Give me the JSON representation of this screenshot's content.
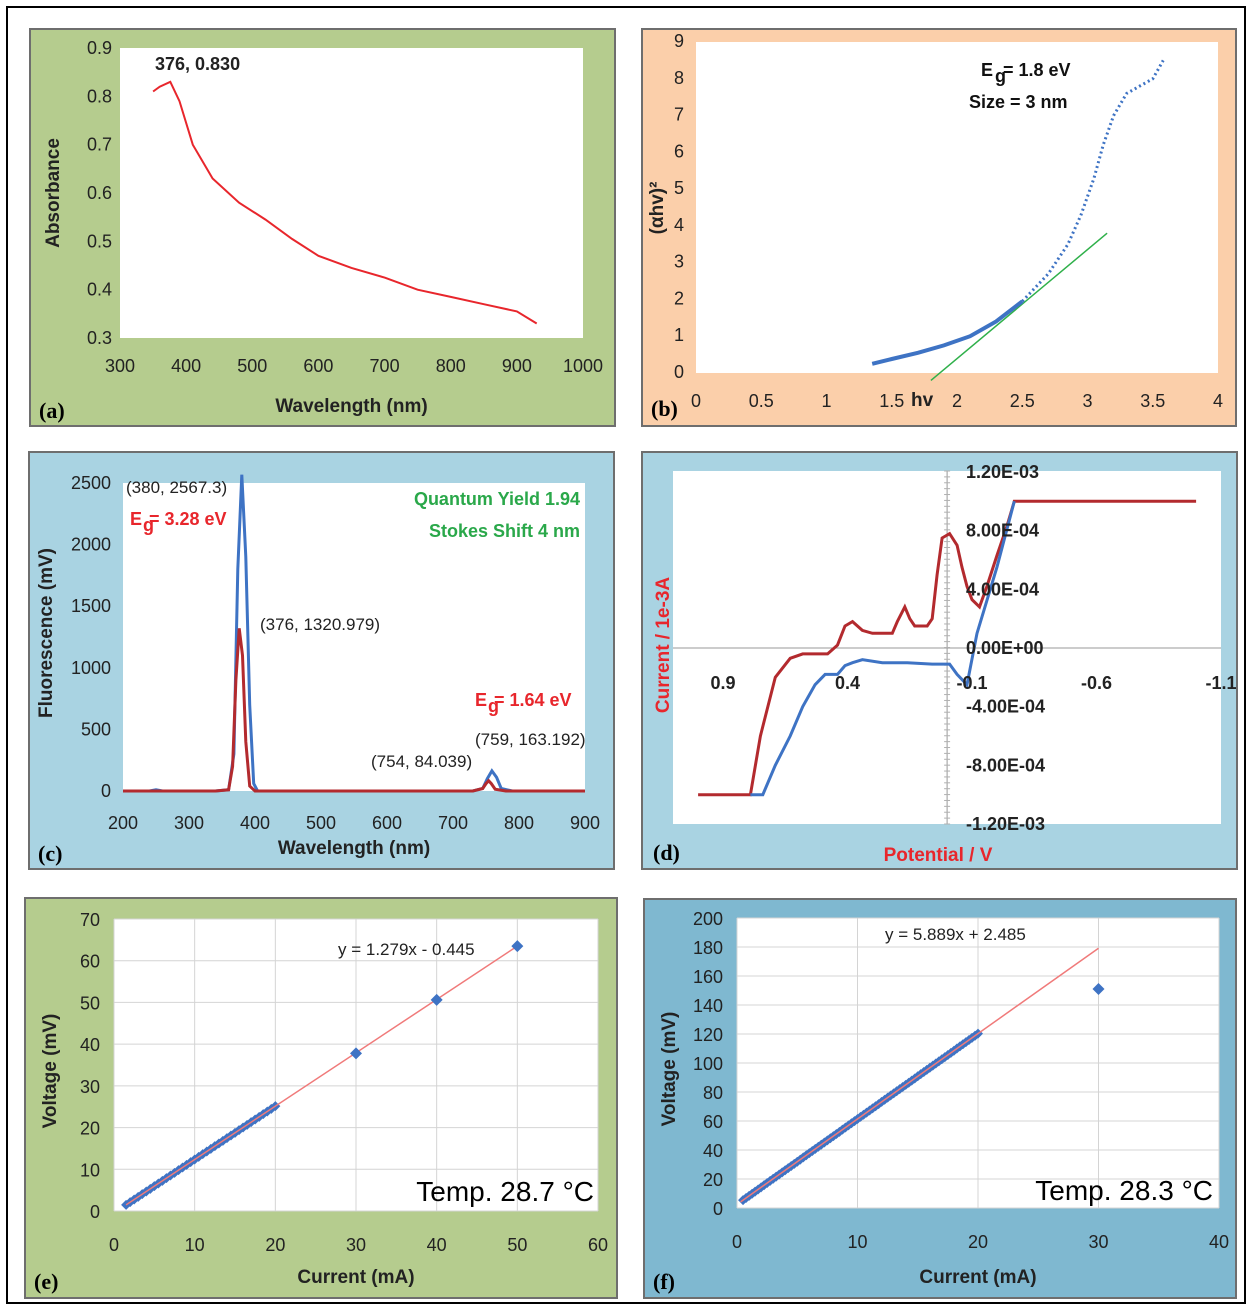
{
  "colors": {
    "green_bg": "#b5cc8e",
    "peach_bg": "#fbcfaa",
    "blue_bg": "#a9d3e2",
    "blue_bg_dark": "#7fb8d0",
    "red": "#e8262c",
    "dark_red": "#b32a2e",
    "blue": "#3e73c4",
    "green_line": "#2fb04a",
    "green_text": "#2aa84a",
    "pink_line": "#f07a7a"
  },
  "chart_data": [
    {
      "panel": "(a)",
      "type": "line",
      "xlabel": "Wavelength (nm)",
      "ylabel": "Absorbance",
      "xlim": [
        300,
        1000
      ],
      "ylim": [
        0.3,
        0.9
      ],
      "xticks": [
        "300",
        "400",
        "500",
        "600",
        "700",
        "800",
        "900",
        "1000"
      ],
      "yticks": [
        "0.3",
        "0.4",
        "0.5",
        "0.6",
        "0.7",
        "0.8",
        "0.9"
      ],
      "grid": false,
      "annotations": [
        "376, 0.830"
      ],
      "series": [
        {
          "x": [
            350,
            360,
            376,
            390,
            410,
            440,
            480,
            520,
            560,
            600,
            650,
            700,
            750,
            800,
            850,
            900,
            930
          ],
          "y": [
            0.81,
            0.82,
            0.83,
            0.79,
            0.7,
            0.63,
            0.58,
            0.545,
            0.505,
            0.47,
            0.445,
            0.425,
            0.4,
            0.385,
            0.37,
            0.355,
            0.33
          ]
        }
      ]
    },
    {
      "panel": "(b)",
      "type": "line",
      "xlabel": "hv",
      "ylabel": "(αhv)²",
      "xlim": [
        0,
        4
      ],
      "ylim": [
        0,
        9
      ],
      "xticks": [
        "0",
        "0.5",
        "1",
        "1.5",
        "2",
        "2.5",
        "3",
        "3.5",
        "4"
      ],
      "yticks": [
        "0",
        "1",
        "2",
        "3",
        "4",
        "5",
        "6",
        "7",
        "8",
        "9"
      ],
      "grid": false,
      "annotations": [
        "E",
        "g",
        " = 1.8 eV",
        "Size = 3 nm"
      ],
      "series": [
        {
          "style": "dotted",
          "x": [
            1.35,
            1.5,
            1.7,
            1.9,
            2.1,
            2.3,
            2.5,
            2.7,
            2.85,
            2.95,
            3.05,
            3.12,
            3.2,
            3.3,
            3.4,
            3.5,
            3.58
          ],
          "y": [
            0.25,
            0.38,
            0.55,
            0.75,
            1.0,
            1.4,
            1.95,
            2.7,
            3.5,
            4.3,
            5.3,
            6.2,
            7.0,
            7.6,
            7.8,
            8.0,
            8.5
          ]
        },
        {
          "style": "tangent",
          "x": [
            1.8,
            3.15
          ],
          "y": [
            -0.2,
            3.8
          ]
        }
      ]
    },
    {
      "panel": "(c)",
      "type": "line",
      "xlabel": "Wavelength (nm)",
      "ylabel": "Fluorescence (mV)",
      "xlim": [
        200,
        900
      ],
      "ylim": [
        0,
        2500
      ],
      "xticks": [
        "200",
        "300",
        "400",
        "500",
        "600",
        "700",
        "800",
        "900"
      ],
      "yticks": [
        "0",
        "500",
        "1000",
        "1500",
        "2000",
        "2500"
      ],
      "grid": false,
      "annotations": [
        "(380, 2567.3)",
        "E",
        "g",
        " = 3.28 eV",
        "(376, 1320.979)",
        "Quantum Yield  1.94",
        "Stokes Shift 4 nm",
        "E",
        "g",
        " = 1.64 eV",
        "(759, 163.192)",
        "(754, 84.039)"
      ],
      "series": [
        {
          "color": "blue",
          "x": [
            200,
            240,
            250,
            260,
            340,
            360,
            368,
            374,
            380,
            386,
            392,
            398,
            404,
            420,
            600,
            730,
            745,
            752,
            759,
            766,
            773,
            790,
            900
          ],
          "y": [
            0,
            0,
            10,
            0,
            0,
            10,
            300,
            1800,
            2567,
            1900,
            700,
            60,
            0,
            0,
            0,
            0,
            20,
            100,
            163,
            110,
            20,
            0,
            0
          ]
        },
        {
          "color": "red",
          "x": [
            200,
            340,
            360,
            366,
            371,
            376,
            381,
            386,
            392,
            400,
            600,
            730,
            745,
            750,
            754,
            758,
            764,
            780,
            900
          ],
          "y": [
            0,
            0,
            10,
            200,
            900,
            1321,
            1100,
            400,
            40,
            0,
            0,
            0,
            20,
            60,
            84,
            60,
            15,
            0,
            0
          ]
        }
      ]
    },
    {
      "panel": "(d)",
      "type": "line",
      "xlabel": "Potential / V",
      "ylabel": "Current / 1e-3A",
      "xlim": [
        1.0,
        -1.1
      ],
      "ylim": [
        -0.0012,
        0.0012
      ],
      "xticks": [
        "0.9",
        "0.4",
        "-0.1",
        "-0.6",
        "-1.1"
      ],
      "yticks": [
        "1.20E-03",
        "8.00E-04",
        "4.00E-04",
        "0.00E+00",
        "-4.00E-04",
        "-8.00E-04",
        "-1.20E-03"
      ],
      "grid": false,
      "series": [
        {
          "color": "dark_red",
          "x": [
            1.0,
            0.79,
            0.75,
            0.69,
            0.63,
            0.58,
            0.52,
            0.48,
            0.44,
            0.41,
            0.38,
            0.34,
            0.3,
            0.26,
            0.22,
            0.2,
            0.17,
            0.15,
            0.13,
            0.08,
            0.06,
            0.04,
            0.02,
            -0.01,
            -0.04,
            -0.06,
            -0.08,
            -0.1,
            -0.13,
            -0.16,
            -0.2,
            -0.24,
            -0.27,
            -0.36,
            -0.47,
            -1.0
          ],
          "y": [
            -0.001,
            -0.001,
            -0.0006,
            -0.0002,
            -7e-05,
            -4e-05,
            -4e-05,
            -4e-05,
            2e-05,
            0.00015,
            0.00018,
            0.00012,
            0.0001,
            0.0001,
            0.0001,
            0.00018,
            0.00028,
            0.0002,
            0.00015,
            0.00015,
            0.0002,
            0.0005,
            0.00075,
            0.00078,
            0.0007,
            0.00055,
            0.00042,
            0.00033,
            0.00028,
            0.00042,
            0.00063,
            0.00083,
            0.001,
            0.001,
            0.001,
            0.001
          ]
        },
        {
          "color": "blue",
          "x": [
            0.79,
            0.74,
            0.69,
            0.63,
            0.58,
            0.53,
            0.49,
            0.44,
            0.41,
            0.38,
            0.34,
            0.26,
            0.16,
            0.06,
            -0.01,
            -0.04,
            -0.08,
            -0.12,
            -0.2,
            -0.27
          ],
          "y": [
            -0.001,
            -0.001,
            -0.0008,
            -0.0006,
            -0.0004,
            -0.00025,
            -0.00018,
            -0.00018,
            -0.00012,
            -0.0001,
            -8e-05,
            -0.0001,
            -0.0001,
            -0.00011,
            -0.00011,
            -0.00018,
            -0.00025,
            0.0001,
            0.00055,
            0.001
          ]
        }
      ]
    },
    {
      "panel": "(e)",
      "type": "scatter",
      "xlabel": "Current (mA)",
      "ylabel": "Voltage (mV)",
      "xlim": [
        0,
        60
      ],
      "ylim": [
        0,
        70
      ],
      "xticks": [
        "0",
        "10",
        "20",
        "30",
        "40",
        "50",
        "60"
      ],
      "yticks": [
        "0",
        "10",
        "20",
        "30",
        "40",
        "50",
        "60",
        "70"
      ],
      "grid": true,
      "trendline": {
        "label": "y = 1.279x - 0.445",
        "slope": 1.279,
        "intercept": -0.445,
        "x_range": [
          1.5,
          50
        ]
      },
      "annotation": "Temp. 28.7 °C",
      "dense_range": {
        "x_from": 1.5,
        "x_to": 20.0,
        "step": 0.5
      },
      "x": [
        30,
        40,
        50
      ],
      "y": [
        37.8,
        50.6,
        63.5
      ]
    },
    {
      "panel": "(f)",
      "type": "scatter",
      "xlabel": "Current (mA)",
      "ylabel": "Voltage (mV)",
      "xlim": [
        0,
        40
      ],
      "ylim": [
        0,
        200
      ],
      "xticks": [
        "0",
        "10",
        "20",
        "30",
        "40"
      ],
      "yticks": [
        "0",
        "20",
        "40",
        "60",
        "80",
        "100",
        "120",
        "140",
        "160",
        "180",
        "200"
      ],
      "grid": true,
      "trendline": {
        "label": "y = 5.889x + 2.485",
        "slope": 5.889,
        "intercept": 2.485,
        "x_range": [
          0.3,
          30
        ]
      },
      "annotation": "Temp. 28.3 °C",
      "dense_range": {
        "x_from": 0.5,
        "x_to": 20.0,
        "step": 0.25
      },
      "x": [
        30
      ],
      "y": [
        151
      ]
    }
  ]
}
